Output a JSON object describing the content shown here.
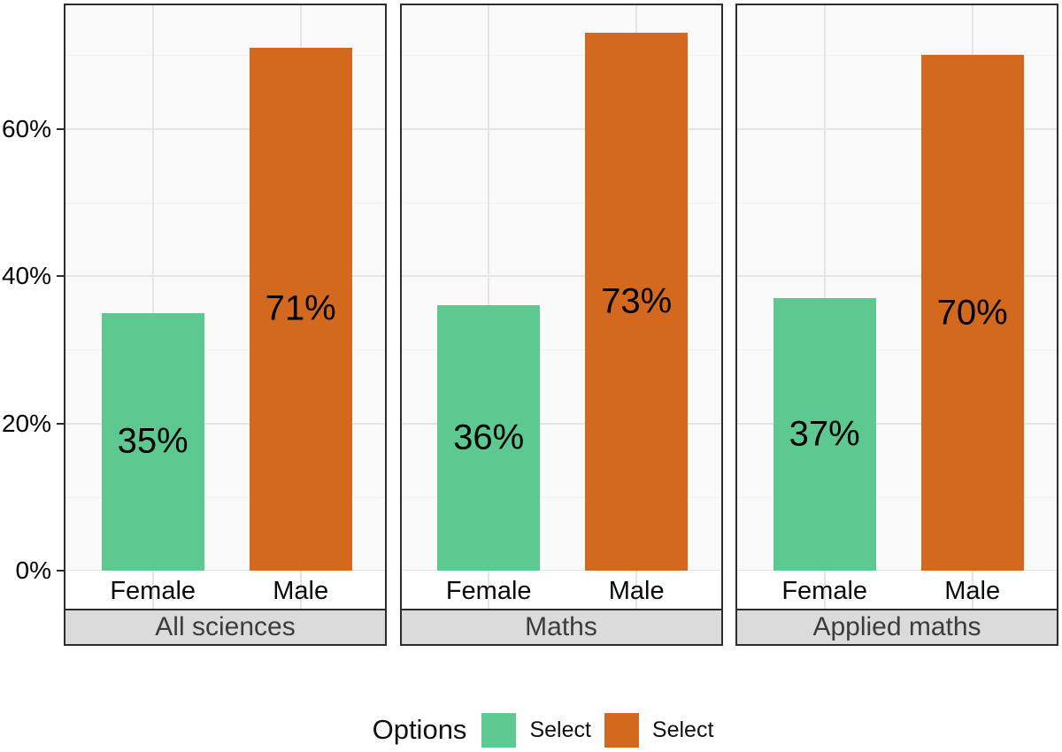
{
  "chart_data": {
    "type": "bar",
    "title": "",
    "categories": [
      "Female",
      "Male"
    ],
    "series": [
      {
        "name": "Select",
        "color": "#5DC88F"
      },
      {
        "name": "Select",
        "color": "#D2691E"
      }
    ],
    "facets": [
      {
        "label": "All sciences",
        "bars": [
          {
            "category": "Female",
            "series": "Select",
            "value": 35,
            "label": "35%",
            "color": "#5DC88F"
          },
          {
            "category": "Male",
            "series": "Select",
            "value": 71,
            "label": "71%",
            "color": "#D2691E"
          }
        ]
      },
      {
        "label": "Maths",
        "bars": [
          {
            "category": "Female",
            "series": "Select",
            "value": 36,
            "label": "36%",
            "color": "#5DC88F"
          },
          {
            "category": "Male",
            "series": "Select",
            "value": 73,
            "label": "73%",
            "color": "#D2691E"
          }
        ]
      },
      {
        "label": "Applied maths",
        "bars": [
          {
            "category": "Female",
            "series": "Select",
            "value": 37,
            "label": "37%",
            "color": "#5DC88F"
          },
          {
            "category": "Male",
            "series": "Select",
            "value": 70,
            "label": "70%",
            "color": "#D2691E"
          }
        ]
      }
    ],
    "yticks": [
      {
        "value": 0,
        "label": "0%"
      },
      {
        "value": 20,
        "label": "20%"
      },
      {
        "value": 40,
        "label": "40%"
      },
      {
        "value": 60,
        "label": "60%"
      }
    ],
    "minor_yticks": [
      10,
      30,
      50,
      70
    ],
    "ylim": [
      0,
      77
    ],
    "grid": "on",
    "legend": {
      "position": "bottom",
      "title": "Options",
      "items": [
        {
          "label": "Select",
          "color": "#5DC88F"
        },
        {
          "label": "Select",
          "color": "#D2691E"
        }
      ]
    }
  }
}
